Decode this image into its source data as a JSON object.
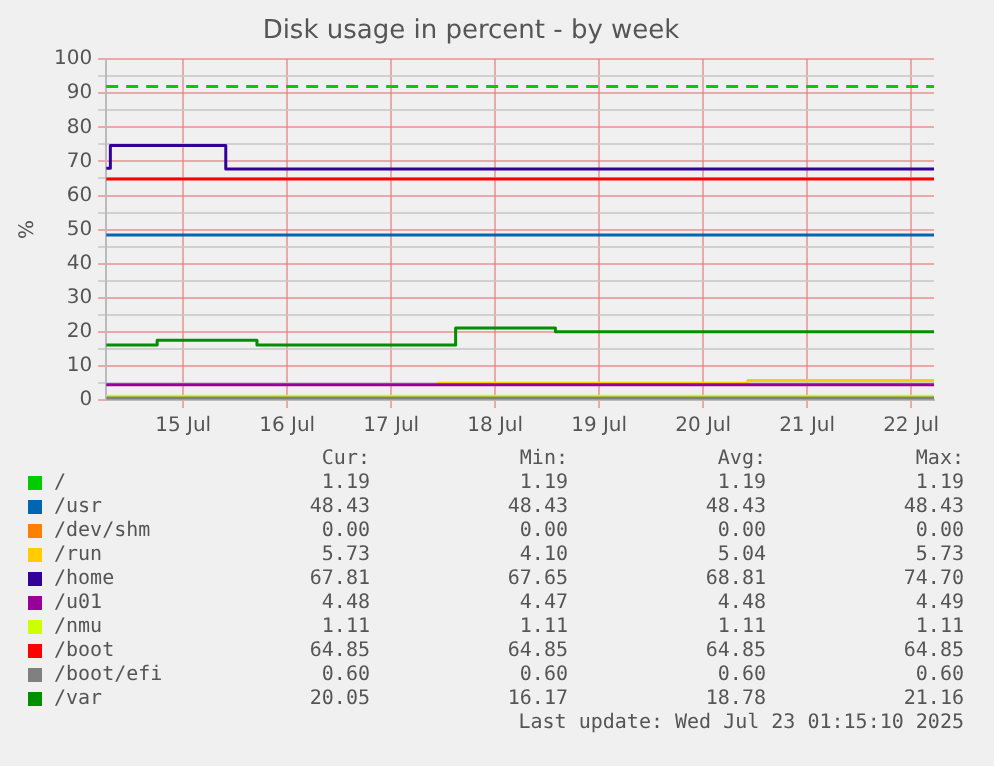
{
  "chart_data": {
    "type": "step",
    "title": "Disk usage in percent - by week",
    "ylabel": "%",
    "xlim": [
      "2025-07-14T06:14",
      "2025-07-22T05:17"
    ],
    "xticks": [
      {
        "value": "2025-07-15",
        "label": "15 Jul"
      },
      {
        "value": "2025-07-16",
        "label": "16 Jul"
      },
      {
        "value": "2025-07-17",
        "label": "17 Jul"
      },
      {
        "value": "2025-07-18",
        "label": "18 Jul"
      },
      {
        "value": "2025-07-19",
        "label": "19 Jul"
      },
      {
        "value": "2025-07-20",
        "label": "20 Jul"
      },
      {
        "value": "2025-07-21",
        "label": "21 Jul"
      },
      {
        "value": "2025-07-22",
        "label": "22 Jul"
      }
    ],
    "ylim": [
      0,
      100
    ],
    "yticks": [
      0,
      {
        "value": 5,
        "label": null
      },
      10,
      {
        "value": 15,
        "label": null
      },
      20,
      {
        "value": 25,
        "label": null
      },
      30,
      {
        "value": 35,
        "label": null
      },
      40,
      {
        "value": 45,
        "label": null
      },
      50,
      {
        "value": 55,
        "label": null
      },
      60,
      {
        "value": 65,
        "label": null
      },
      70,
      {
        "value": 75,
        "label": null
      },
      80,
      {
        "value": 85,
        "label": null
      },
      90,
      {
        "value": 95,
        "label": null
      },
      100
    ],
    "grid": true,
    "legend": "bottom",
    "series": [
      {
        "name": "/",
        "color": "#00cc00"
      },
      {
        "name": "/usr",
        "color": "#0066b3",
        "x": [
          "2025-07-14T06:14",
          "2025-07-22T05:17"
        ],
        "values": [
          48.43,
          48.43
        ]
      },
      {
        "name": "/dev/shm",
        "color": "#ff8000"
      },
      {
        "name": "/run",
        "color": "#ffcc00",
        "x": [
          "2025-07-17T10:34",
          "2025-07-20T10:19",
          "2025-07-22T05:17"
        ],
        "values": [
          4.9,
          5.73,
          5.73
        ]
      },
      {
        "name": "/home",
        "color": "#330099",
        "x": [
          "2025-07-14T06:14",
          "2025-07-14T07:12",
          "2025-07-15T09:50",
          "2025-07-22T05:17"
        ],
        "values": [
          68,
          74.7,
          67.81,
          67.81
        ]
      },
      {
        "name": "/u01",
        "color": "#990099",
        "x": [
          "2025-07-14T06:14",
          "2025-07-22T05:17"
        ],
        "values": [
          4.48,
          4.48
        ]
      },
      {
        "name": "/nmu",
        "color": "#ccff00",
        "x": [
          "2025-07-14T06:14",
          "2025-07-22T05:17"
        ],
        "values": [
          1.11,
          1.11
        ]
      },
      {
        "name": "/boot",
        "color": "#ff0000",
        "x": [
          "2025-07-14T06:14",
          "2025-07-22T05:17"
        ],
        "values": [
          64.85,
          64.85
        ]
      },
      {
        "name": "/boot/efi",
        "color": "#808080",
        "x": [
          "2025-07-14T06:14",
          "2025-07-22T05:17"
        ],
        "values": [
          0.6,
          0.6
        ]
      },
      {
        "name": "/var",
        "color": "#008f00",
        "x": [
          "2025-07-14T06:14",
          "2025-07-14T18:00",
          "2025-07-15T17:02",
          "2025-07-17T14:53",
          "2025-07-18T13:55",
          "2025-07-22T05:17"
        ],
        "values": [
          16.17,
          17.5,
          16.17,
          21.16,
          20.05,
          20.05
        ]
      }
    ],
    "ref_lines": [
      {
        "axis": "y",
        "value": 92,
        "color": "#00cc00",
        "line_style": "dashed"
      }
    ],
    "annotations": [
      "Cur:",
      "Min:",
      "Avg:",
      "Max:",
      "1.19",
      "1.19",
      "1.19",
      "1.19",
      "48.43",
      "48.43",
      "48.43",
      "48.43",
      "0.00",
      "0.00",
      "0.00",
      "0.00",
      "5.73",
      "4.10",
      "5.04",
      "5.73",
      "67.81",
      "67.65",
      "68.81",
      "74.70",
      "4.48",
      "4.47",
      "4.48",
      "4.49",
      "1.11",
      "1.11",
      "1.11",
      "1.11",
      "64.85",
      "64.85",
      "64.85",
      "64.85",
      "0.60",
      "0.60",
      "0.60",
      "0.60",
      "20.05",
      "16.17",
      "18.78",
      "21.16",
      "Last update: Wed Jul 23 01:15:10 2025"
    ]
  }
}
